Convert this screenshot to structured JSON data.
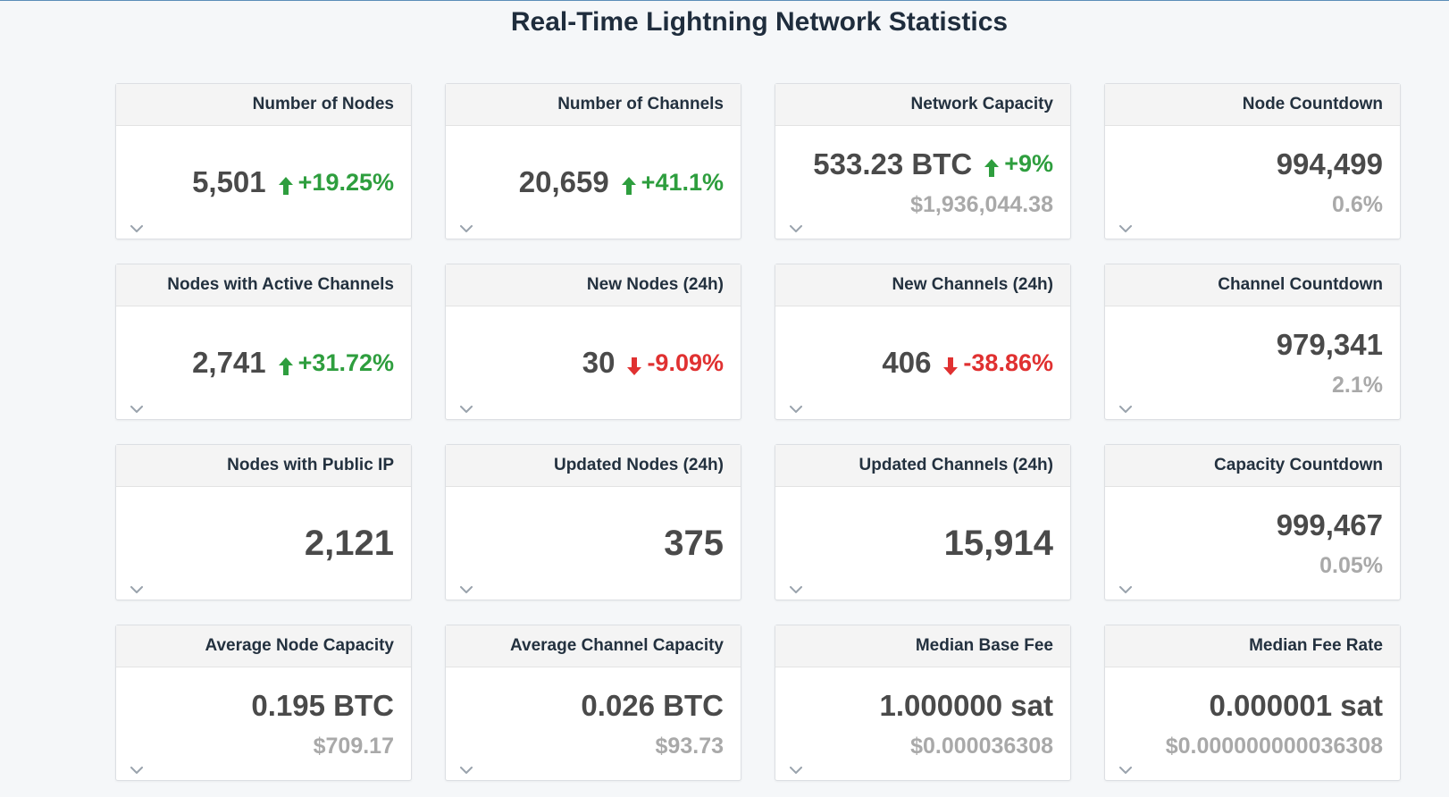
{
  "page": {
    "title": "Real-Time Lightning Network Statistics"
  },
  "colors": {
    "up": "#2e9e3e",
    "down": "#e03131",
    "value": "#4a4a4a",
    "sub": "#a9a9a9"
  },
  "cards": [
    {
      "title": "Number of Nodes",
      "value": "5,501",
      "change": "+19.25%",
      "direction": "up",
      "sub": ""
    },
    {
      "title": "Number of Channels",
      "value": "20,659",
      "change": "+41.1%",
      "direction": "up",
      "sub": ""
    },
    {
      "title": "Network Capacity",
      "value": "533.23 BTC",
      "change": "+9%",
      "direction": "up",
      "sub": "$1,936,044.38"
    },
    {
      "title": "Node Countdown",
      "value": "994,499",
      "change": "",
      "direction": "",
      "sub": "0.6%"
    },
    {
      "title": "Nodes with Active Channels",
      "value": "2,741",
      "change": "+31.72%",
      "direction": "up",
      "sub": ""
    },
    {
      "title": "New Nodes (24h)",
      "value": "30",
      "change": "-9.09%",
      "direction": "down",
      "sub": ""
    },
    {
      "title": "New Channels (24h)",
      "value": "406",
      "change": "-38.86%",
      "direction": "down",
      "sub": ""
    },
    {
      "title": "Channel Countdown",
      "value": "979,341",
      "change": "",
      "direction": "",
      "sub": "2.1%"
    },
    {
      "title": "Nodes with Public IP",
      "value": "2,121",
      "change": "",
      "direction": "",
      "sub": ""
    },
    {
      "title": "Updated Nodes (24h)",
      "value": "375",
      "change": "",
      "direction": "",
      "sub": ""
    },
    {
      "title": "Updated Channels (24h)",
      "value": "15,914",
      "change": "",
      "direction": "",
      "sub": ""
    },
    {
      "title": "Capacity Countdown",
      "value": "999,467",
      "change": "",
      "direction": "",
      "sub": "0.05%"
    },
    {
      "title": "Average Node Capacity",
      "value": "0.195 BTC",
      "change": "",
      "direction": "",
      "sub": "$709.17"
    },
    {
      "title": "Average Channel Capacity",
      "value": "0.026 BTC",
      "change": "",
      "direction": "",
      "sub": "$93.73"
    },
    {
      "title": "Median Base Fee",
      "value": "1.000000 sat",
      "change": "",
      "direction": "",
      "sub": "$0.000036308"
    },
    {
      "title": "Median Fee Rate",
      "value": "0.000001 sat",
      "change": "",
      "direction": "",
      "sub": "$0.000000000036308"
    }
  ],
  "icons": {
    "up": "arrow-up-icon",
    "down": "arrow-down-icon",
    "expand": "chevron-down-icon"
  }
}
